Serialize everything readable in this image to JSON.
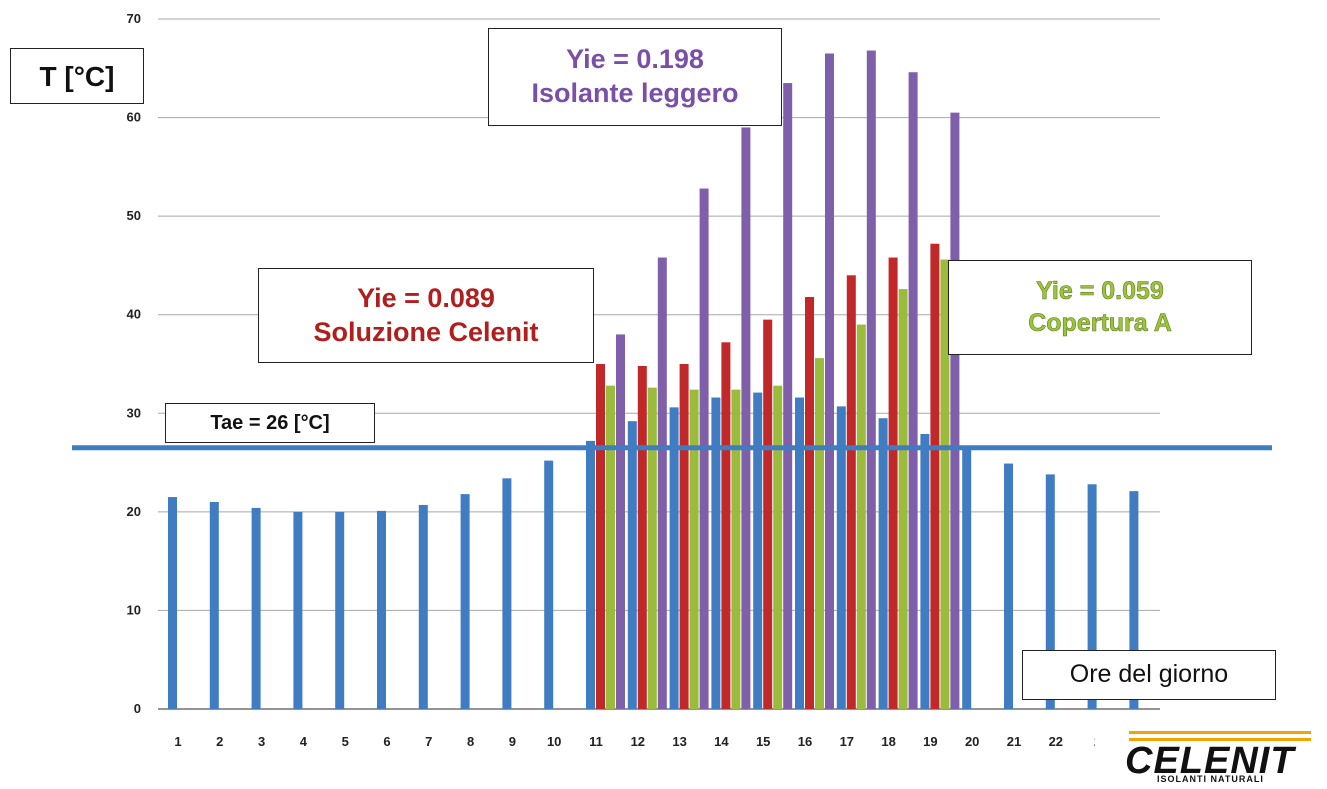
{
  "chart_data": {
    "type": "bar",
    "ylabel": "T [°C]",
    "xlabel": "Ore del giorno",
    "ylim": [
      0,
      70
    ],
    "yticks": [
      0,
      10,
      20,
      30,
      40,
      50,
      60,
      70
    ],
    "grid": true,
    "categories": [
      "1",
      "2",
      "3",
      "4",
      "5",
      "6",
      "7",
      "8",
      "9",
      "10",
      "11",
      "12",
      "13",
      "14",
      "15",
      "16",
      "17",
      "18",
      "19",
      "20",
      "21",
      "22",
      "2",
      ""
    ],
    "series": [
      {
        "values": [
          21.5,
          21.0,
          20.4,
          20.0,
          20.0,
          20.1,
          20.7,
          21.8,
          23.4,
          25.2,
          27.2,
          29.2,
          30.6,
          31.6,
          32.1,
          31.6,
          30.7,
          29.5,
          27.9,
          26.3,
          24.9,
          23.8,
          22.8,
          22.1
        ]
      },
      {
        "values": [
          null,
          null,
          null,
          null,
          null,
          null,
          null,
          null,
          null,
          null,
          35.0,
          34.8,
          35.0,
          37.2,
          39.5,
          41.8,
          44.0,
          45.8,
          47.2,
          null,
          null,
          null,
          null,
          null
        ]
      },
      {
        "values": [
          null,
          null,
          null,
          null,
          null,
          null,
          null,
          null,
          null,
          null,
          32.8,
          32.6,
          32.4,
          32.4,
          32.8,
          35.6,
          39.0,
          42.6,
          45.6,
          null,
          null,
          null,
          null,
          null
        ]
      },
      {
        "values": [
          null,
          null,
          null,
          null,
          null,
          null,
          null,
          null,
          null,
          null,
          38.0,
          45.8,
          52.8,
          59.0,
          63.5,
          66.5,
          66.8,
          64.6,
          60.5,
          null,
          null,
          null,
          null,
          null
        ]
      }
    ],
    "reference_line": {
      "value": 26.5,
      "label": "Tae = 26 [°C]"
    },
    "annotations": [
      {
        "line1": "Yie = 0.198",
        "line2": "Isolante leggero"
      },
      {
        "line1": "Yie = 0.089",
        "line2": "Soluzione Celenit"
      },
      {
        "line1": "Yie = 0.059",
        "line2": "Copertura A"
      }
    ]
  },
  "colors": {
    "blue": "#3f7cc2",
    "red": "#c0282a",
    "green": "#9bbb3c",
    "purple": "#7f5fa9",
    "grid": "#a8a8a8",
    "logo_accent": "#f5a300"
  },
  "logo": {
    "name": "CELENIT",
    "tagline": "ISOLANTI NATURALI"
  }
}
